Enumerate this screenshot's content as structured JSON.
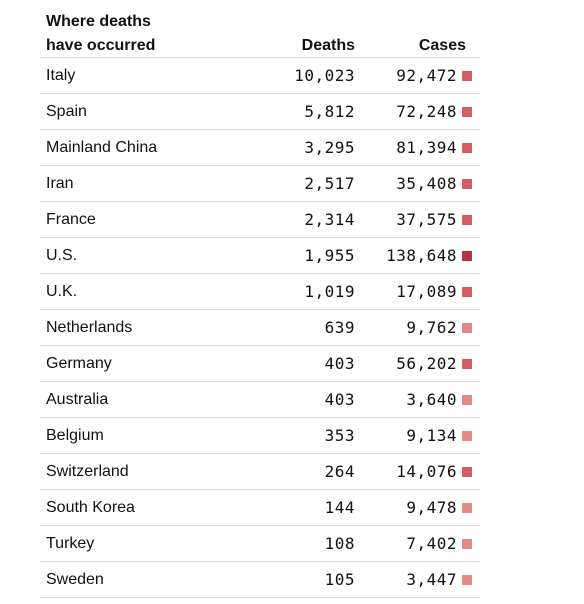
{
  "header": {
    "title_line1": "Where deaths",
    "title_line2": "have occurred",
    "deaths_label": "Deaths",
    "cases_label": "Cases"
  },
  "colors": {
    "light": "#e48a86",
    "medium": "#d85a63",
    "dark": "#b6314a"
  },
  "rows": [
    {
      "country": "Italy",
      "deaths": "10,023",
      "cases": "92,472",
      "swatch": "medium"
    },
    {
      "country": "Spain",
      "deaths": "5,812",
      "cases": "72,248",
      "swatch": "medium"
    },
    {
      "country": "Mainland China",
      "deaths": "3,295",
      "cases": "81,394",
      "swatch": "medium"
    },
    {
      "country": "Iran",
      "deaths": "2,517",
      "cases": "35,408",
      "swatch": "medium"
    },
    {
      "country": "France",
      "deaths": "2,314",
      "cases": "37,575",
      "swatch": "medium"
    },
    {
      "country": "U.S.",
      "deaths": "1,955",
      "cases": "138,648",
      "swatch": "dark"
    },
    {
      "country": "U.K.",
      "deaths": "1,019",
      "cases": "17,089",
      "swatch": "medium"
    },
    {
      "country": "Netherlands",
      "deaths": "639",
      "cases": "9,762",
      "swatch": "light"
    },
    {
      "country": "Germany",
      "deaths": "403",
      "cases": "56,202",
      "swatch": "medium"
    },
    {
      "country": "Australia",
      "deaths": "403",
      "cases": "3,640",
      "swatch": "light"
    },
    {
      "country": "Belgium",
      "deaths": "353",
      "cases": "9,134",
      "swatch": "light"
    },
    {
      "country": "Switzerland",
      "deaths": "264",
      "cases": "14,076",
      "swatch": "medium"
    },
    {
      "country": "South Korea",
      "deaths": "144",
      "cases": "9,478",
      "swatch": "light"
    },
    {
      "country": "Turkey",
      "deaths": "108",
      "cases": "7,402",
      "swatch": "light"
    },
    {
      "country": "Sweden",
      "deaths": "105",
      "cases": "3,447",
      "swatch": "light"
    }
  ]
}
